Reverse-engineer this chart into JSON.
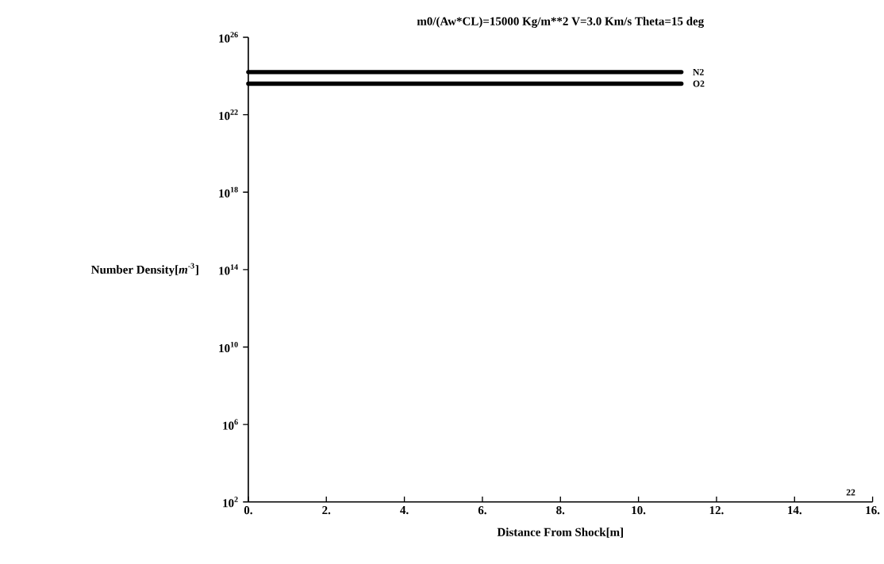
{
  "chart_data": {
    "type": "line",
    "title": "m0/(Aw*CL)=15000 Kg/m**2 V=3.0 Km/s Theta=15 deg",
    "xlabel": "Distance From Shock[m]",
    "ylabel": "Number Density[*m*$^{-3}$]",
    "x": [
      0,
      11.1
    ],
    "series": [
      {
        "name": "N2",
        "color": "#000000",
        "values": [
          1.6e+24,
          1.6e+24
        ]
      },
      {
        "name": "O2",
        "color": "#000000",
        "values": [
          4e+23,
          4e+23
        ]
      }
    ],
    "log": "y",
    "xlim": [
      0,
      16
    ],
    "ylim": [
      100.0,
      1e+26
    ],
    "xticks": [
      {
        "value": 0,
        "label": "0."
      },
      {
        "value": 2,
        "label": "2."
      },
      {
        "value": 4,
        "label": "4."
      },
      {
        "value": 6,
        "label": "6."
      },
      {
        "value": 8,
        "label": "8."
      },
      {
        "value": 10,
        "label": "10."
      },
      {
        "value": 12,
        "label": "12."
      },
      {
        "value": 14,
        "label": "14."
      },
      {
        "value": 16,
        "label": "16."
      }
    ],
    "yticks": [
      {
        "value": 100.0,
        "label": "10$^{2}$"
      },
      {
        "value": 1000000.0,
        "label": "10$^{6}$"
      },
      {
        "value": 10000000000.0,
        "label": "10$^{10}$"
      },
      {
        "value": 100000000000000.0,
        "label": "10$^{14}$"
      },
      {
        "value": 1e+18,
        "label": "10$^{18}$"
      },
      {
        "value": 1e+22,
        "label": "10$^{22}$"
      },
      {
        "value": 1e+26,
        "label": "10$^{26}$"
      }
    ],
    "annotations": [
      "22"
    ]
  }
}
